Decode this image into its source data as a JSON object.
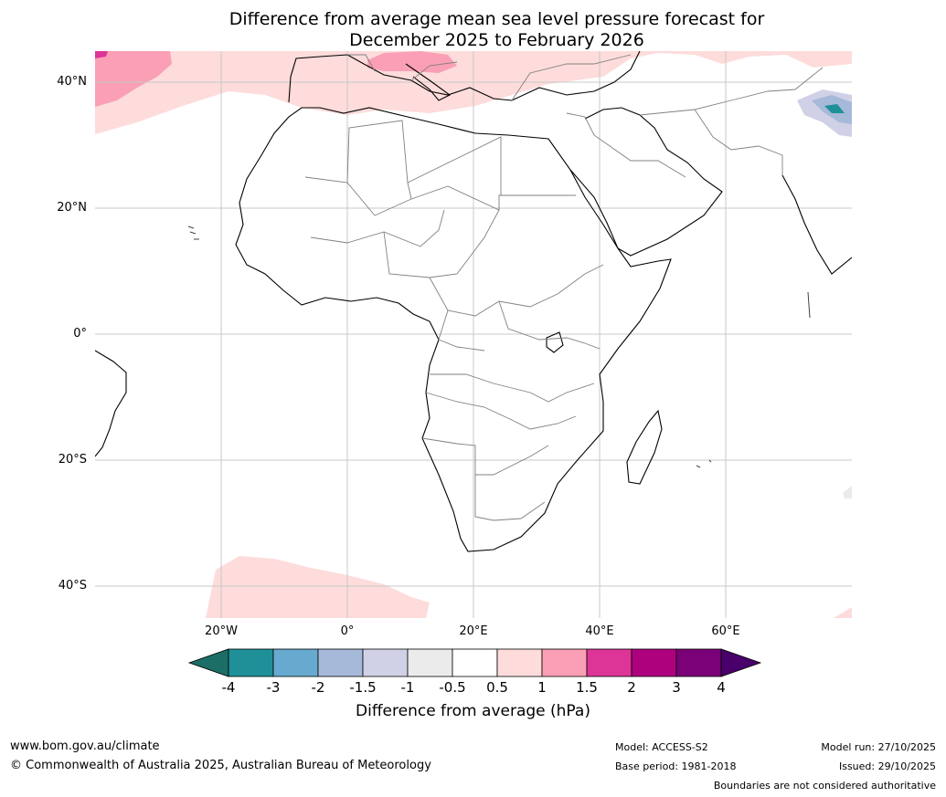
{
  "title": {
    "line1": "Difference from average mean sea level pressure forecast for",
    "line2": "December 2025 to February 2026"
  },
  "map": {
    "lat_labels": [
      "40°N",
      "20°N",
      "0°",
      "20°S",
      "40°S"
    ],
    "lon_labels": [
      "20°W",
      "0°",
      "20°E",
      "40°E",
      "60°E"
    ]
  },
  "colorbar": {
    "ticks": [
      "-4",
      "-3",
      "-2",
      "-1.5",
      "-1",
      "-0.5",
      "0.5",
      "1",
      "1.5",
      "2",
      "3",
      "4"
    ],
    "colors": [
      "#1b6e66",
      "#1f9098",
      "#67a9cf",
      "#a6b9d8",
      "#d0d1e6",
      "#ebebeb",
      "#ffffff",
      "#fddcdb",
      "#fa9fb5",
      "#dd3497",
      "#ae017e",
      "#7a0177",
      "#49006a"
    ],
    "label": "Difference from average (hPa)"
  },
  "footer": {
    "url": "www.bom.gov.au/climate",
    "copyright": "© Commonwealth of Australia 2025, Australian Bureau of Meteorology",
    "model": "Model: ACCESS-S2",
    "base_period": "Base period: 1981-2018",
    "model_run": "Model run: 27/10/2025",
    "issued": "Issued: 29/10/2025",
    "disclaimer": "Boundaries are not considered authoritative"
  }
}
